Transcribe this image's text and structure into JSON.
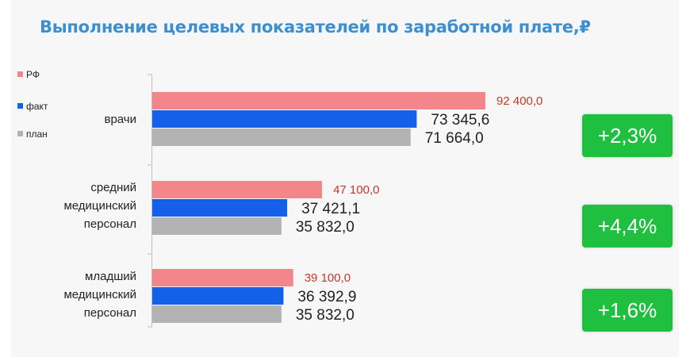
{
  "chart_data": {
    "type": "bar",
    "title": "Выполнение целевых показателей по заработной плате,₽",
    "categories": [
      "врачи",
      "средний\nмедицинский\nперсонал",
      "младший\nмедицинский\nперсонал"
    ],
    "series": [
      {
        "name": "РФ",
        "color": "#f2868a",
        "values": [
          92400.0,
          47100.0,
          39100.0
        ],
        "labels": [
          "92 400,0",
          "47 100,0",
          "39 100,0"
        ],
        "label_color": "#c0392b"
      },
      {
        "name": "факт",
        "color": "#1560e8",
        "values": [
          73345.6,
          37421.1,
          36392.9
        ],
        "labels": [
          "73 345,6",
          "37 421,1",
          "36 392,9"
        ],
        "label_color": "#222222"
      },
      {
        "name": "план",
        "color": "#b3b3b3",
        "values": [
          71664.0,
          35832.0,
          35832.0
        ],
        "labels": [
          "71 664,0",
          "35 832,0",
          "35 832,0"
        ],
        "label_color": "#222222"
      }
    ],
    "growth_badges": [
      "+2,3%",
      "+4,4%",
      "+1,6%"
    ],
    "xlim": [
      0,
      100000
    ],
    "orientation": "horizontal",
    "legend_position": "top-left",
    "badge_color": "#1fbf3f"
  }
}
